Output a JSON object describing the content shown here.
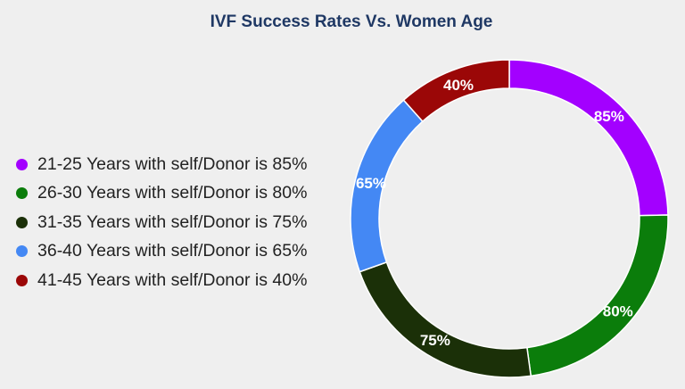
{
  "chart_data": {
    "type": "pie",
    "title": "IVF Success Rates Vs. Women Age",
    "categories": [
      "21-25 Years with self/Donor is 85%",
      "26-30 Years with self/Donor is 80%",
      "31-35 Years with self/Donor is 75%",
      "36-40 Years with self/Donor is 65%",
      "41-45 Years with self/Donor is 40%"
    ],
    "values": [
      85,
      80,
      75,
      65,
      40
    ],
    "labels": [
      "85%",
      "80%",
      "75%",
      "65%",
      "40%"
    ],
    "colors": [
      "#a300ff",
      "#0b7d0b",
      "#1b3008",
      "#4488f4",
      "#9b0707"
    ],
    "legend": "left",
    "donut": true
  }
}
